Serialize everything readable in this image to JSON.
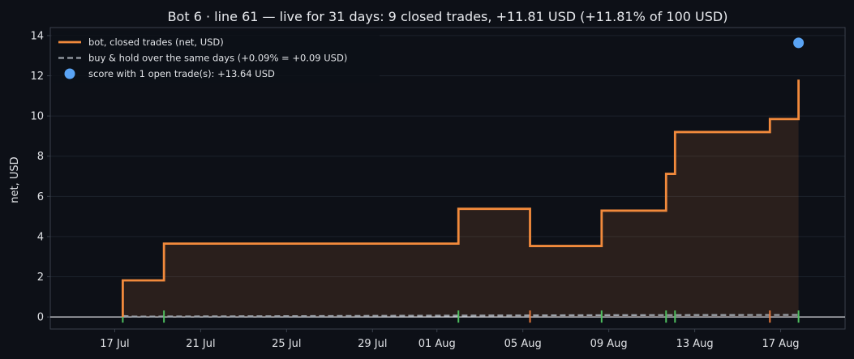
{
  "chart_data": {
    "type": "line",
    "title": "Bot 6 · line 61 — live for 31 days: 9 closed trades, +11.81 USD (+11.81% of 100 USD)",
    "xlabel": "",
    "ylabel": "net, USD",
    "ylim": [
      -0.6,
      14.4
    ],
    "xlim": [
      "2025-07-14T00:00",
      "2025-08-20T00:00"
    ],
    "x_ticks": [
      "17 Jul",
      "21 Jul",
      "25 Jul",
      "29 Jul",
      "01 Aug",
      "05 Aug",
      "09 Aug",
      "13 Aug",
      "17 Aug"
    ],
    "y_ticks": [
      0,
      2,
      4,
      6,
      8,
      10,
      12,
      14
    ],
    "grid": "horizontal",
    "legend_position": "top-left",
    "colors": {
      "background": "#0d1017",
      "bot": "#f28a3c",
      "hold": "#9aa0a8",
      "score": "#5aa4f5",
      "entry_marker": "#4fbf5f",
      "exit_marker": "#e5773a",
      "zero_line": "#d8dadf",
      "grid": "#1c222c",
      "spine": "#3a414c"
    },
    "series": [
      {
        "name": "bot, closed trades (net, USD)",
        "style": "step",
        "points": [
          {
            "x": "2025-07-17T09:00",
            "y": 0
          },
          {
            "x": "2025-07-17T09:00",
            "y": 1.82
          },
          {
            "x": "2025-07-19T07:00",
            "y": 3.65
          },
          {
            "x": "2025-08-02T00:00",
            "y": 5.38
          },
          {
            "x": "2025-08-05T08:00",
            "y": 3.53
          },
          {
            "x": "2025-08-08T16:00",
            "y": 5.29
          },
          {
            "x": "2025-08-11T16:00",
            "y": 7.12
          },
          {
            "x": "2025-08-12T02:00",
            "y": 9.2
          },
          {
            "x": "2025-08-16T12:00",
            "y": 9.85
          },
          {
            "x": "2025-08-17T20:00",
            "y": 11.81
          }
        ]
      },
      {
        "name": "buy & hold over the same days (+0.09% = +0.09 USD)",
        "style": "dashed",
        "points": [
          {
            "x": "2025-07-17T09:00",
            "y": 0.05
          },
          {
            "x": "2025-07-17T21:00",
            "y": 0.02
          },
          {
            "x": "2025-07-25T00:00",
            "y": 0.04
          },
          {
            "x": "2025-08-02T00:00",
            "y": 0.07
          },
          {
            "x": "2025-08-09T00:00",
            "y": 0.09
          },
          {
            "x": "2025-08-17T20:00",
            "y": 0.1
          }
        ]
      },
      {
        "name": "score with 1 open trade(s): +13.64 USD",
        "style": "marker",
        "points": [
          {
            "x": "2025-08-17T20:00",
            "y": 13.64
          }
        ]
      }
    ],
    "trade_markers": {
      "entries": [
        "2025-07-17T09:00",
        "2025-07-19T07:00",
        "2025-08-02T00:00",
        "2025-08-08T16:00",
        "2025-08-11T16:00",
        "2025-08-12T02:00",
        "2025-08-17T20:00"
      ],
      "exits": [
        "2025-08-05T08:00",
        "2025-08-16T12:00"
      ]
    }
  }
}
